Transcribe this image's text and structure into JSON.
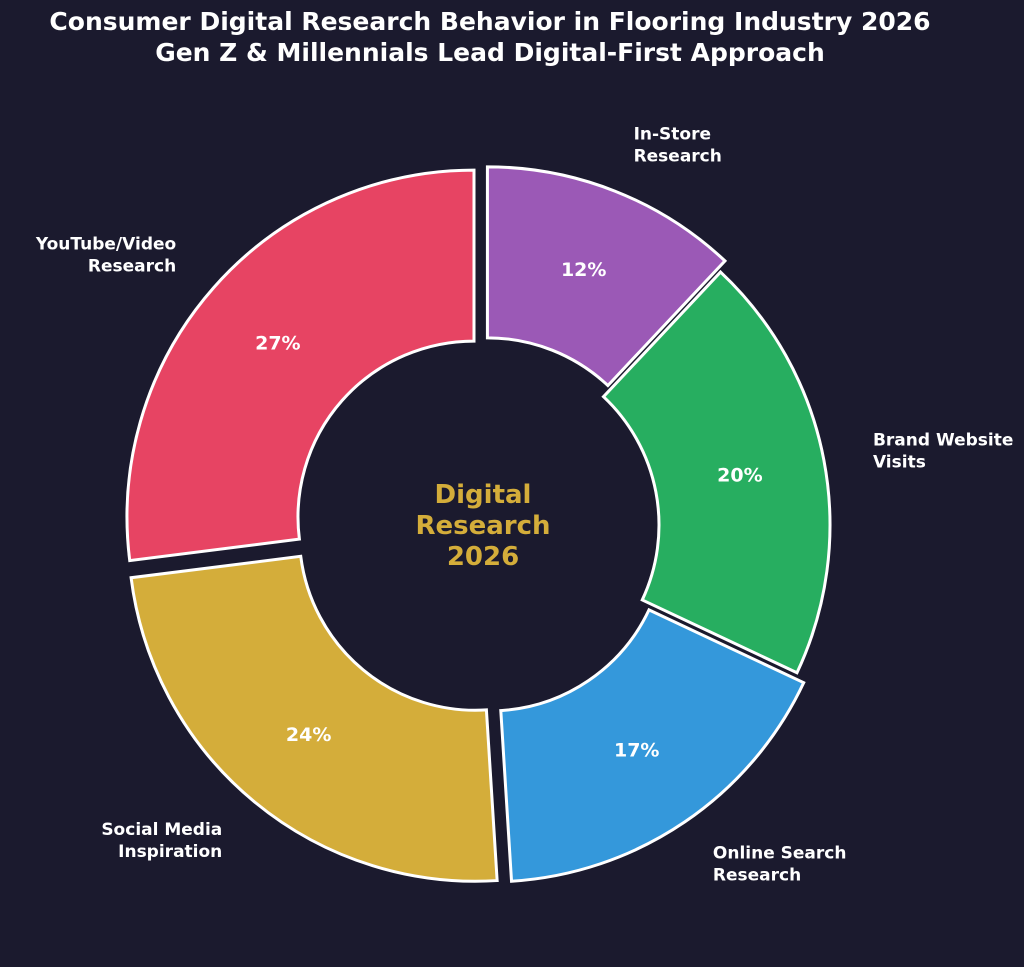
{
  "colors": {
    "background": "#1b1a2e",
    "center_text": "#d4ad3a",
    "slice_stroke": "#ffffff"
  },
  "chart_data": {
    "type": "pie",
    "title": "Consumer Digital Research Behavior in Flooring Industry 2026",
    "subtitle": "Gen Z & Millennials Lead Digital-First Approach",
    "center_label": [
      "Digital",
      "Research",
      "2026"
    ],
    "donut": true,
    "start_angle_deg": 90,
    "direction": "clockwise",
    "slices": [
      {
        "label": [
          "In-Store",
          "Research"
        ],
        "value": 12,
        "value_label": "12%",
        "color": "#9b59b6",
        "exploded": true
      },
      {
        "label": [
          "Brand Website",
          "Visits"
        ],
        "value": 20,
        "value_label": "20%",
        "color": "#27ae60",
        "exploded": false
      },
      {
        "label": [
          "Online Search",
          "Research"
        ],
        "value": 17,
        "value_label": "17%",
        "color": "#3498db",
        "exploded": true
      },
      {
        "label": [
          "Social Media",
          "Inspiration"
        ],
        "value": 24,
        "value_label": "24%",
        "color": "#d4ad3a",
        "exploded": true
      },
      {
        "label": [
          "YouTube/Video",
          "Research"
        ],
        "value": 27,
        "value_label": "27%",
        "color": "#e74463",
        "exploded": true
      }
    ]
  }
}
